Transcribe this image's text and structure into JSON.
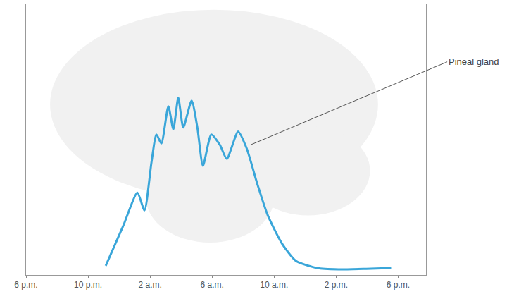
{
  "chart_data": {
    "type": "line",
    "x": [
      5.14,
      6.27,
      7.18,
      7.64,
      8.09,
      8.41,
      8.73,
      9.18,
      9.5,
      9.82,
      10.14,
      10.68,
      11.05,
      11.41,
      11.95,
      12.5,
      12.95,
      13.68,
      14.23,
      14.91,
      15.59,
      16.5,
      17.41,
      18.77,
      20.14,
      21.95,
      23.55
    ],
    "values": [
      3.4,
      18.2,
      30.4,
      23.9,
      41.6,
      51.9,
      48.6,
      62.3,
      53.8,
      65.5,
      54.5,
      64.4,
      54.5,
      40.3,
      51.9,
      48.1,
      42.9,
      53.0,
      46.8,
      33.8,
      22.1,
      11.7,
      5.2,
      2.6,
      2.1,
      2.3,
      2.6
    ],
    "color": "#3aa6d9",
    "xlim": [
      0,
      25.8
    ],
    "xticks": [
      {
        "value": 0,
        "label": "6 p.m."
      },
      {
        "value": 4,
        "label": "10 p.m."
      },
      {
        "value": 8,
        "label": "2 a.m."
      },
      {
        "value": 12,
        "label": "6 a.m."
      },
      {
        "value": 16,
        "label": "10 a.m."
      },
      {
        "value": 20,
        "label": "2 p.m."
      },
      {
        "value": 24,
        "label": "6 p.m."
      }
    ],
    "ylim": [
      0,
      100
    ],
    "tick_labels": "x",
    "grid": false,
    "annotations": [
      {
        "text": "Pineal gland"
      }
    ]
  }
}
